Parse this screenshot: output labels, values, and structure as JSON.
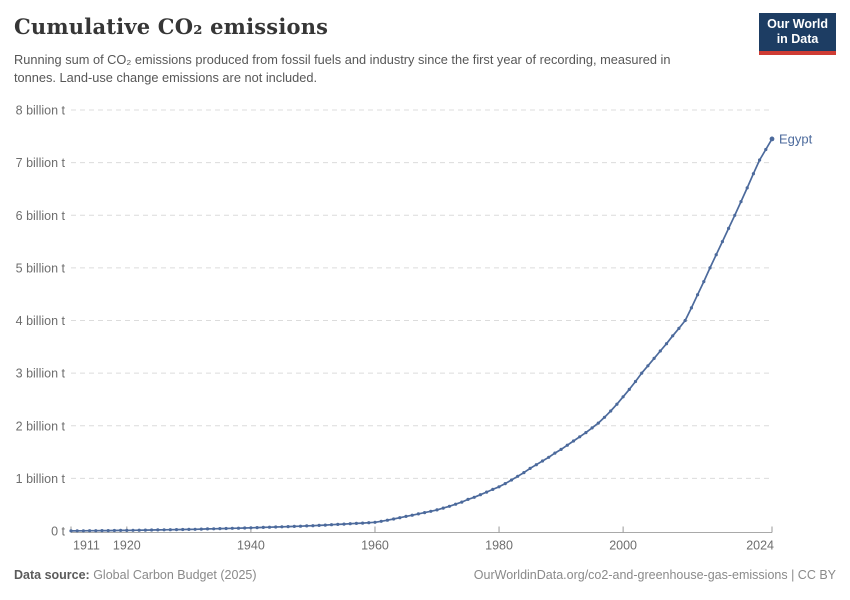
{
  "header": {
    "title": "Cumulative CO₂ emissions",
    "subtitle": "Running sum of CO₂ emissions produced from fossil fuels and industry since the first year of recording, measured in tonnes. Land-use change emissions are not included.",
    "logo": {
      "line1": "Our World",
      "line2": "in Data"
    }
  },
  "footer": {
    "source_label": "Data source:",
    "source_value": " Global Carbon Budget (2025)",
    "right_text": "OurWorldinData.org/co2-and-greenhouse-gas-emissions | CC BY"
  },
  "colors": {
    "series_blue": "#4C6A9C",
    "gridline": "#dcdcdc",
    "axis_baseline": "#a9a9a9",
    "tick": "#999999",
    "logo_navy": "#1d3d63",
    "logo_red": "#cf3c34"
  },
  "chart_data": {
    "type": "line",
    "title": "Cumulative CO₂ emissions",
    "entity": "Egypt",
    "end_label": "Egypt",
    "unit": "billion tonnes",
    "grid": "horizontal-dashed",
    "legend_position": "end-of-line",
    "xlim": [
      1911,
      2024
    ],
    "ylim": [
      0,
      8
    ],
    "yticks": [
      {
        "value": 0,
        "label": "0 t"
      },
      {
        "value": 1,
        "label": "1 billion t"
      },
      {
        "value": 2,
        "label": "2 billion t"
      },
      {
        "value": 3,
        "label": "3 billion t"
      },
      {
        "value": 4,
        "label": "4 billion t"
      },
      {
        "value": 5,
        "label": "5 billion t"
      },
      {
        "value": 6,
        "label": "6 billion t"
      },
      {
        "value": 7,
        "label": "7 billion t"
      },
      {
        "value": 8,
        "label": "8 billion t"
      }
    ],
    "xticks": [
      "1911",
      "1920",
      "1940",
      "1960",
      "1980",
      "2000",
      "2024"
    ],
    "xtick_years": [
      1911,
      1920,
      1940,
      1960,
      1980,
      2000,
      2024
    ],
    "x": [
      1911,
      1912,
      1913,
      1914,
      1915,
      1916,
      1917,
      1918,
      1919,
      1920,
      1921,
      1922,
      1923,
      1924,
      1925,
      1926,
      1927,
      1928,
      1929,
      1930,
      1931,
      1932,
      1933,
      1934,
      1935,
      1936,
      1937,
      1938,
      1939,
      1940,
      1941,
      1942,
      1943,
      1944,
      1945,
      1946,
      1947,
      1948,
      1949,
      1950,
      1951,
      1952,
      1953,
      1954,
      1955,
      1956,
      1957,
      1958,
      1959,
      1960,
      1961,
      1962,
      1963,
      1964,
      1965,
      1966,
      1967,
      1968,
      1969,
      1970,
      1971,
      1972,
      1973,
      1974,
      1975,
      1976,
      1977,
      1978,
      1979,
      1980,
      1981,
      1982,
      1983,
      1984,
      1985,
      1986,
      1987,
      1988,
      1989,
      1990,
      1991,
      1992,
      1993,
      1994,
      1995,
      1996,
      1997,
      1998,
      1999,
      2000,
      2001,
      2002,
      2003,
      2004,
      2005,
      2006,
      2007,
      2008,
      2009,
      2010,
      2011,
      2012,
      2013,
      2014,
      2015,
      2016,
      2017,
      2018,
      2019,
      2020,
      2021,
      2022,
      2023,
      2024
    ],
    "series": [
      {
        "name": "Egypt",
        "color": "#4C6A9C",
        "values": [
          0.002,
          0.003,
          0.004,
          0.005,
          0.006,
          0.007,
          0.008,
          0.009,
          0.011,
          0.012,
          0.014,
          0.016,
          0.017,
          0.019,
          0.021,
          0.023,
          0.025,
          0.026,
          0.028,
          0.03,
          0.033,
          0.036,
          0.039,
          0.042,
          0.045,
          0.048,
          0.051,
          0.054,
          0.057,
          0.06,
          0.064,
          0.068,
          0.072,
          0.076,
          0.08,
          0.084,
          0.088,
          0.092,
          0.096,
          0.1,
          0.106,
          0.112,
          0.119,
          0.125,
          0.132,
          0.138,
          0.145,
          0.151,
          0.158,
          0.165,
          0.185,
          0.205,
          0.228,
          0.252,
          0.277,
          0.3,
          0.325,
          0.35,
          0.375,
          0.4,
          0.435,
          0.47,
          0.51,
          0.55,
          0.6,
          0.64,
          0.69,
          0.74,
          0.79,
          0.84,
          0.9,
          0.97,
          1.04,
          1.11,
          1.19,
          1.26,
          1.33,
          1.4,
          1.48,
          1.55,
          1.63,
          1.71,
          1.79,
          1.87,
          1.96,
          2.05,
          2.16,
          2.28,
          2.41,
          2.55,
          2.69,
          2.84,
          3.0,
          3.14,
          3.28,
          3.42,
          3.56,
          3.71,
          3.85,
          4.0,
          4.24,
          4.49,
          4.74,
          5.0,
          5.25,
          5.5,
          5.75,
          6.0,
          6.26,
          6.52,
          6.79,
          7.05,
          7.25,
          7.45
        ]
      }
    ]
  }
}
